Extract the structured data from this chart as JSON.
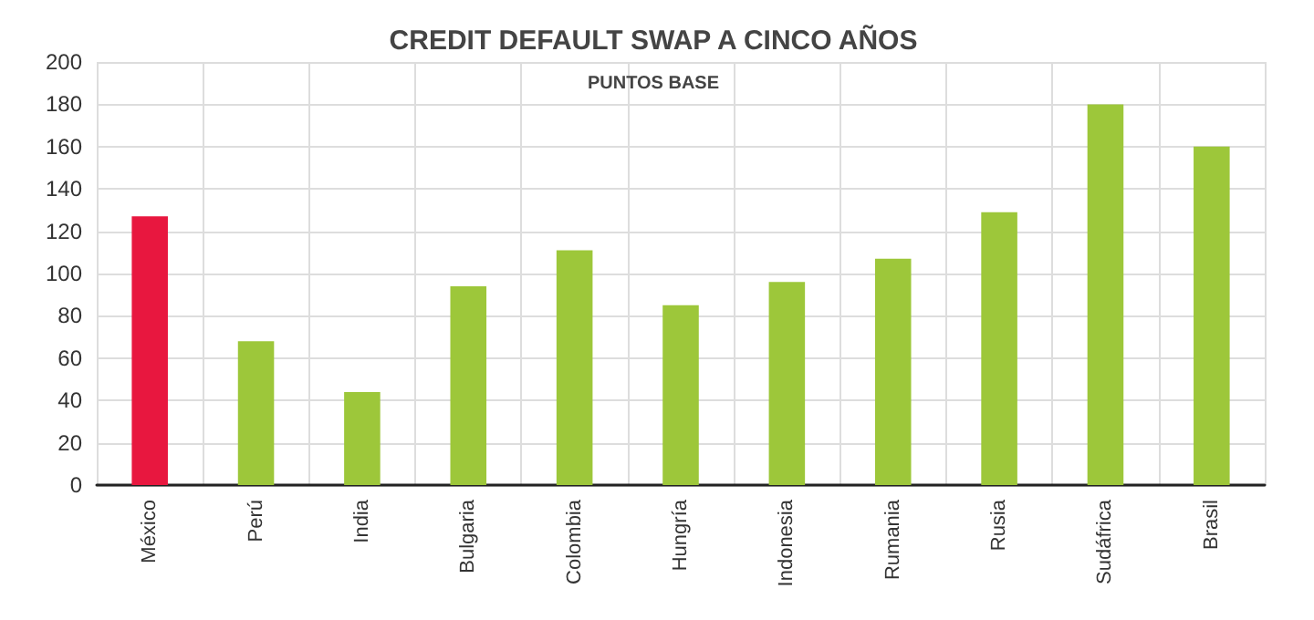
{
  "chart_data": {
    "type": "bar",
    "title": "CREDIT DEFAULT SWAP A CINCO AÑOS",
    "subtitle": "PUNTOS BASE",
    "categories": [
      "México",
      "Perú",
      "India",
      "Bulgaria",
      "Colombia",
      "Hungría",
      "Indonesia",
      "Rumania",
      "Rusia",
      "Sudáfrica",
      "Brasil"
    ],
    "values": [
      127,
      68,
      44,
      94,
      111,
      85,
      96,
      107,
      129,
      180,
      160
    ],
    "colors": [
      "#e8173f",
      "#9dc73a",
      "#9dc73a",
      "#9dc73a",
      "#9dc73a",
      "#9dc73a",
      "#9dc73a",
      "#9dc73a",
      "#9dc73a",
      "#9dc73a",
      "#9dc73a"
    ],
    "ylim": [
      0,
      200
    ],
    "yticks": [
      0,
      20,
      40,
      60,
      80,
      100,
      120,
      140,
      160,
      180,
      200
    ],
    "grid": true
  }
}
